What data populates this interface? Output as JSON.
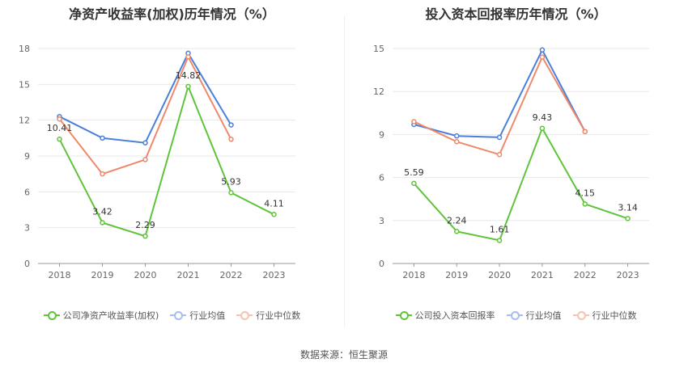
{
  "source_text": "数据来源：恒生聚源",
  "colors": {
    "company": "#5fc43a",
    "avg": "#4a7fdc",
    "median": "#f0896a"
  },
  "chart_data": [
    {
      "type": "line",
      "title": "净资产收益率(加权)历年情况（%）",
      "categories": [
        "2018",
        "2019",
        "2020",
        "2021",
        "2022",
        "2023"
      ],
      "ylim": [
        0,
        18
      ],
      "yticks": [
        0,
        3,
        6,
        9,
        12,
        15,
        18
      ],
      "grid": true,
      "legend_position": "bottom",
      "series": [
        {
          "name": "公司净资产收益率(加权)",
          "key": "company",
          "values": [
            10.41,
            3.42,
            2.29,
            14.82,
            5.93,
            4.11
          ],
          "labels": [
            "10.41",
            "3.42",
            "2.29",
            "14.82",
            "5.93",
            "4.11"
          ]
        },
        {
          "name": "行业均值",
          "key": "avg",
          "values": [
            12.3,
            10.5,
            10.1,
            17.6,
            11.6,
            null
          ]
        },
        {
          "name": "行业中位数",
          "key": "median",
          "values": [
            12.1,
            7.5,
            8.7,
            17.3,
            10.4,
            null
          ]
        }
      ]
    },
    {
      "type": "line",
      "title": "投入资本回报率历年情况（%）",
      "categories": [
        "2018",
        "2019",
        "2020",
        "2021",
        "2022",
        "2023"
      ],
      "ylim": [
        0,
        15
      ],
      "yticks": [
        0,
        3,
        6,
        9,
        12,
        15
      ],
      "grid": true,
      "legend_position": "bottom",
      "series": [
        {
          "name": "公司投入资本回报率",
          "key": "company",
          "values": [
            5.59,
            2.24,
            1.61,
            9.43,
            4.15,
            3.14
          ],
          "labels": [
            "5.59",
            "2.24",
            "1.61",
            "9.43",
            "4.15",
            "3.14"
          ]
        },
        {
          "name": "行业均值",
          "key": "avg",
          "values": [
            9.7,
            8.9,
            8.8,
            14.9,
            9.2,
            null
          ]
        },
        {
          "name": "行业中位数",
          "key": "median",
          "values": [
            9.9,
            8.5,
            7.6,
            14.4,
            9.2,
            null
          ]
        }
      ]
    }
  ]
}
